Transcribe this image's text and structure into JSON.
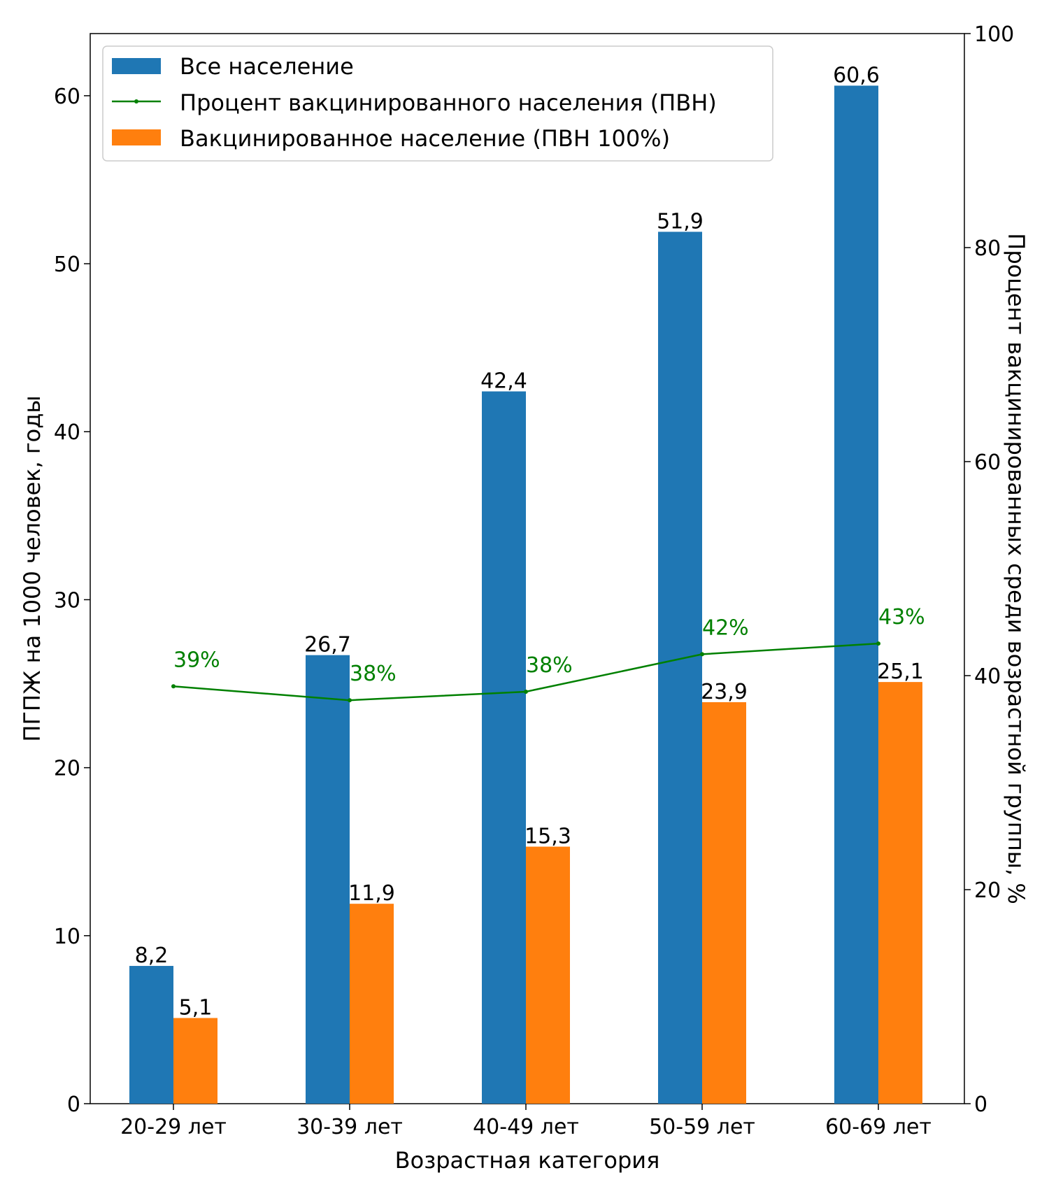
{
  "chart_data": {
    "type": "bar",
    "categories": [
      "20-29 лет",
      "30-39 лет",
      "40-49 лет",
      "50-59 лет",
      "60-69 лет"
    ],
    "xlabel": "Возрастная категория",
    "ylabel": "ПГПЖ на 1000 человек, годы",
    "ylabel_right": "Процент вакцинированных среди возрастной группы, %",
    "ylim": [
      0,
      63.7
    ],
    "ylim_right": [
      0,
      100
    ],
    "yticks": [
      0,
      10,
      20,
      30,
      40,
      50,
      60
    ],
    "yticks_right": [
      0,
      20,
      40,
      60,
      80,
      100
    ],
    "grid": false,
    "legend_position": "top-left",
    "series": [
      {
        "name": "Все население",
        "type": "bar",
        "axis": "left",
        "color": "#1f77b4",
        "values": [
          8.2,
          26.7,
          42.4,
          51.9,
          60.6
        ],
        "labels": [
          "8,2",
          "26,7",
          "42,4",
          "51,9",
          "60,6"
        ]
      },
      {
        "name": "Процент вакцинированного населения (ПВН)",
        "type": "line",
        "axis": "right",
        "color": "#008000",
        "values": [
          39,
          37.7,
          38.5,
          42,
          43
        ],
        "labels": [
          "39%",
          "38%",
          "38%",
          "42%",
          "43%"
        ]
      },
      {
        "name": "Вакцинированное население (ПВН 100%)",
        "type": "bar",
        "axis": "left",
        "color": "#ff7f0e",
        "values": [
          5.1,
          11.9,
          15.3,
          23.9,
          25.1
        ],
        "labels": [
          "5,1",
          "11,9",
          "15,3",
          "23,9",
          "25,1"
        ]
      }
    ]
  }
}
